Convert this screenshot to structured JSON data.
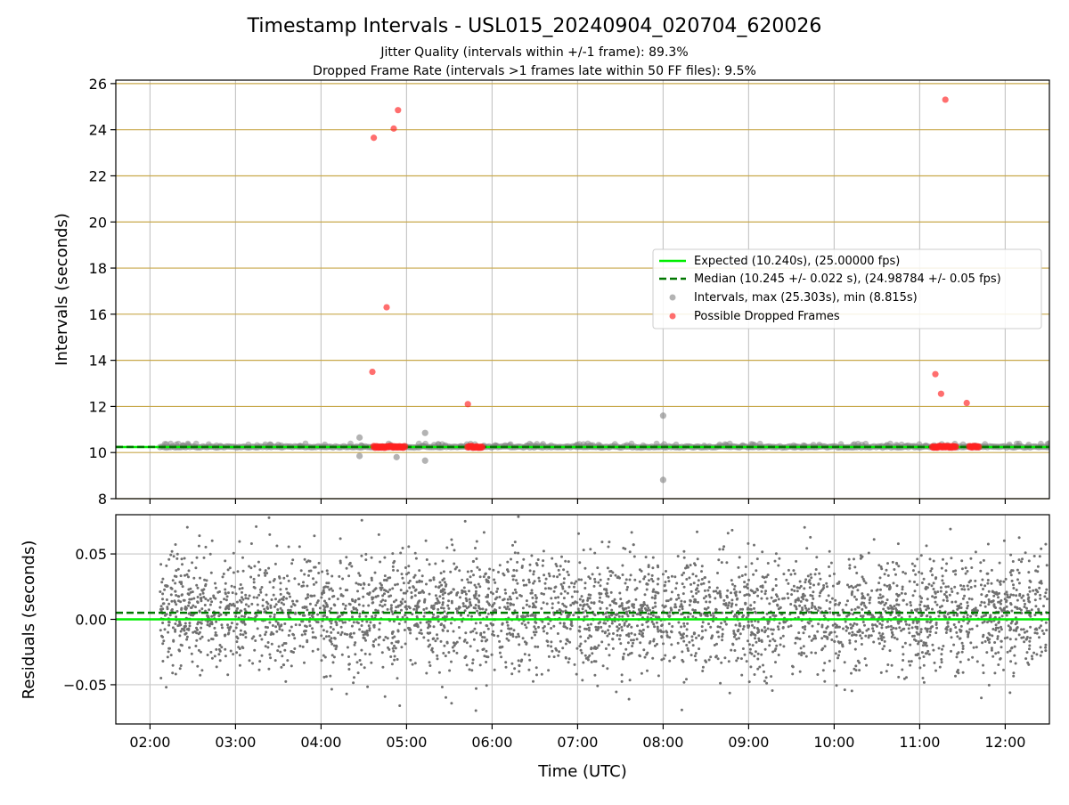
{
  "chart_data": [
    {
      "type": "scatter",
      "title": "Timestamp Intervals - USL015_20240904_020704_620026",
      "subtitle_lines": [
        "Jitter Quality (intervals within +/-1 frame): 89.3%",
        "Dropped Frame Rate (intervals >1 frames late within 50 FF files): 9.5%"
      ],
      "ylabel": "Intervals (seconds)",
      "xlim": [
        "01:36",
        "12:31"
      ],
      "ylim": [
        8,
        26.15
      ],
      "yticks": [
        8,
        10,
        12,
        14,
        16,
        18,
        20,
        22,
        24,
        26
      ],
      "ytick_labels": [
        "8",
        "10",
        "12",
        "14",
        "16",
        "18",
        "20",
        "22",
        "24",
        "26"
      ],
      "xticks": [
        "02:00",
        "03:00",
        "04:00",
        "05:00",
        "06:00",
        "07:00",
        "08:00",
        "09:00",
        "10:00",
        "11:00",
        "12:00"
      ],
      "grid": {
        "x": true,
        "y": true,
        "y_color": "#c8a84b"
      },
      "legend_position": "center-right",
      "colors": {
        "expected": "#00ee00",
        "median": "#007700",
        "intervals": "#808080",
        "dropped": "#ff2020"
      },
      "expected_line": {
        "name": "Expected (10.240s), (25.00000 fps)",
        "y": 10.24
      },
      "median_line": {
        "name": "Median (10.245 +/- 0.022 s), (24.98784 +/- 0.05 fps)",
        "y": 10.245
      },
      "series": [
        {
          "name": "Intervals, max (25.303s), min (8.815s)",
          "band": {
            "x_start": "02:07",
            "x_end": "12:31",
            "y": 10.245
          },
          "outliers": [
            {
              "x": "04:27",
              "y": 10.65
            },
            {
              "x": "04:27",
              "y": 9.85
            },
            {
              "x": "04:53",
              "y": 9.8
            },
            {
              "x": "05:13",
              "y": 10.85
            },
            {
              "x": "05:13",
              "y": 9.65
            },
            {
              "x": "08:00",
              "y": 11.6
            },
            {
              "x": "08:00",
              "y": 8.815
            },
            {
              "x": "12:31",
              "y": 10.4
            }
          ]
        },
        {
          "name": "Possible Dropped Frames",
          "clusters": [
            {
              "x_start": "04:37",
              "x_end": "04:59",
              "y": 10.245
            },
            {
              "x_start": "05:43",
              "x_end": "05:53",
              "y": 10.245
            },
            {
              "x_start": "11:09",
              "x_end": "11:26",
              "y": 10.245
            },
            {
              "x_start": "11:35",
              "x_end": "11:42",
              "y": 10.245
            }
          ],
          "points": [
            {
              "x": "04:37",
              "y": 23.65
            },
            {
              "x": "04:51",
              "y": 24.05
            },
            {
              "x": "04:54",
              "y": 24.85
            },
            {
              "x": "04:46",
              "y": 16.3
            },
            {
              "x": "04:36",
              "y": 13.5
            },
            {
              "x": "05:43",
              "y": 12.1
            },
            {
              "x": "11:18",
              "y": 25.303
            },
            {
              "x": "11:11",
              "y": 13.4
            },
            {
              "x": "11:15",
              "y": 12.55
            },
            {
              "x": "11:33",
              "y": 12.15
            }
          ]
        }
      ]
    },
    {
      "type": "scatter",
      "xlabel": "Time (UTC)",
      "ylabel": "Residuals (seconds)",
      "xlim": [
        "01:36",
        "12:31"
      ],
      "ylim": [
        -0.08,
        0.08
      ],
      "yticks": [
        -0.05,
        0,
        0.05
      ],
      "ytick_labels": [
        "−0.05",
        "0.00",
        "0.05"
      ],
      "xticks": [
        "02:00",
        "03:00",
        "04:00",
        "05:00",
        "06:00",
        "07:00",
        "08:00",
        "09:00",
        "10:00",
        "11:00",
        "12:00"
      ],
      "grid": {
        "x": true,
        "y": true
      },
      "expected_line": {
        "y": 0.0
      },
      "median_line": {
        "y": 0.005
      },
      "series": [
        {
          "name": "residuals",
          "color": "#707070",
          "x_start": "02:07",
          "x_end": "12:31",
          "count": 3700,
          "mean": 0.005,
          "std": 0.022
        }
      ]
    }
  ]
}
